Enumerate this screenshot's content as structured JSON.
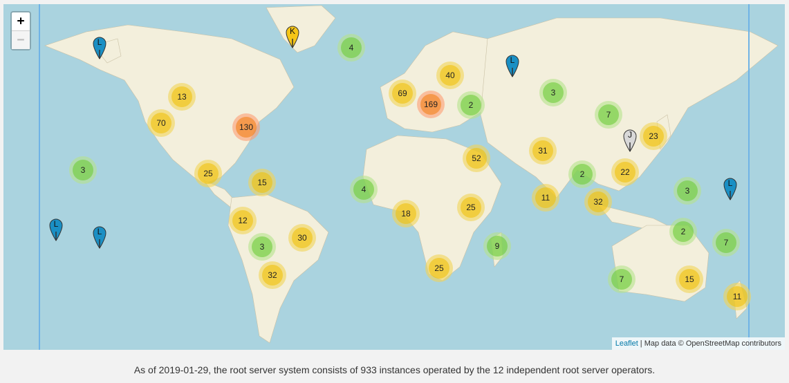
{
  "map": {
    "zoom_in_label": "+",
    "zoom_out_label": "−",
    "attribution": {
      "link": "Leaflet",
      "separator": " | ",
      "text": "Map data © OpenStreetMap contributors"
    },
    "clusters": [
      {
        "label": "4",
        "size": "small",
        "place": "Greenland/Iceland"
      },
      {
        "label": "40",
        "size": "medium",
        "place": "Scandinavia"
      },
      {
        "label": "69",
        "size": "medium",
        "place": "Western Europe"
      },
      {
        "label": "169",
        "size": "large",
        "place": "Central Europe"
      },
      {
        "label": "2",
        "size": "small",
        "place": "Black Sea"
      },
      {
        "label": "3",
        "size": "small",
        "place": "Central Asia"
      },
      {
        "label": "7",
        "size": "small",
        "place": "China"
      },
      {
        "label": "23",
        "size": "medium",
        "place": "Japan"
      },
      {
        "label": "13",
        "size": "medium",
        "place": "Western Canada"
      },
      {
        "label": "70",
        "size": "medium",
        "place": "US West"
      },
      {
        "label": "130",
        "size": "large",
        "place": "US East"
      },
      {
        "label": "3",
        "size": "small",
        "place": "Hawaii"
      },
      {
        "label": "25",
        "size": "medium",
        "place": "Mexico"
      },
      {
        "label": "15",
        "size": "medium",
        "place": "Caribbean"
      },
      {
        "label": "4",
        "size": "small",
        "place": "West Africa"
      },
      {
        "label": "52",
        "size": "medium",
        "place": "Middle East"
      },
      {
        "label": "31",
        "size": "medium",
        "place": "India North"
      },
      {
        "label": "2",
        "size": "small",
        "place": "Indochina"
      },
      {
        "label": "22",
        "size": "medium",
        "place": "Southeast China"
      },
      {
        "label": "3",
        "size": "small",
        "place": "Micronesia"
      },
      {
        "label": "11",
        "size": "medium",
        "place": "South India"
      },
      {
        "label": "32",
        "size": "medium",
        "place": "Southeast Asia"
      },
      {
        "label": "25",
        "size": "medium",
        "place": "East Africa"
      },
      {
        "label": "18",
        "size": "medium",
        "place": "Central Africa"
      },
      {
        "label": "12",
        "size": "medium",
        "place": "Peru"
      },
      {
        "label": "3",
        "size": "small",
        "place": "Bolivia"
      },
      {
        "label": "30",
        "size": "medium",
        "place": "Brazil"
      },
      {
        "label": "32",
        "size": "medium",
        "place": "Argentina"
      },
      {
        "label": "9",
        "size": "small",
        "place": "Madagascar"
      },
      {
        "label": "25",
        "size": "medium",
        "place": "South Africa"
      },
      {
        "label": "2",
        "size": "small",
        "place": "North Australia"
      },
      {
        "label": "7",
        "size": "small",
        "place": "Fiji"
      },
      {
        "label": "7",
        "size": "small",
        "place": "Western Australia"
      },
      {
        "label": "15",
        "size": "medium",
        "place": "Eastern Australia"
      },
      {
        "label": "11",
        "size": "medium",
        "place": "New Zealand"
      }
    ],
    "pins": [
      {
        "letter": "K",
        "color": "#f5c518",
        "place": "Greenland"
      },
      {
        "letter": "L",
        "color": "#1a8fc4",
        "place": "Alaska"
      },
      {
        "letter": "L",
        "color": "#1a8fc4",
        "place": "Russia"
      },
      {
        "letter": "J",
        "color": "#d8d8d8",
        "place": "China East"
      },
      {
        "letter": "L",
        "color": "#1a8fc4",
        "place": "Pacific West"
      },
      {
        "letter": "L",
        "color": "#1a8fc4",
        "place": "Pacific South"
      },
      {
        "letter": "L",
        "color": "#1a8fc4",
        "place": "Pacific East"
      }
    ]
  },
  "caption": "As of 2019-01-29, the root server system consists of 933 instances operated by the 12 independent root server operators."
}
